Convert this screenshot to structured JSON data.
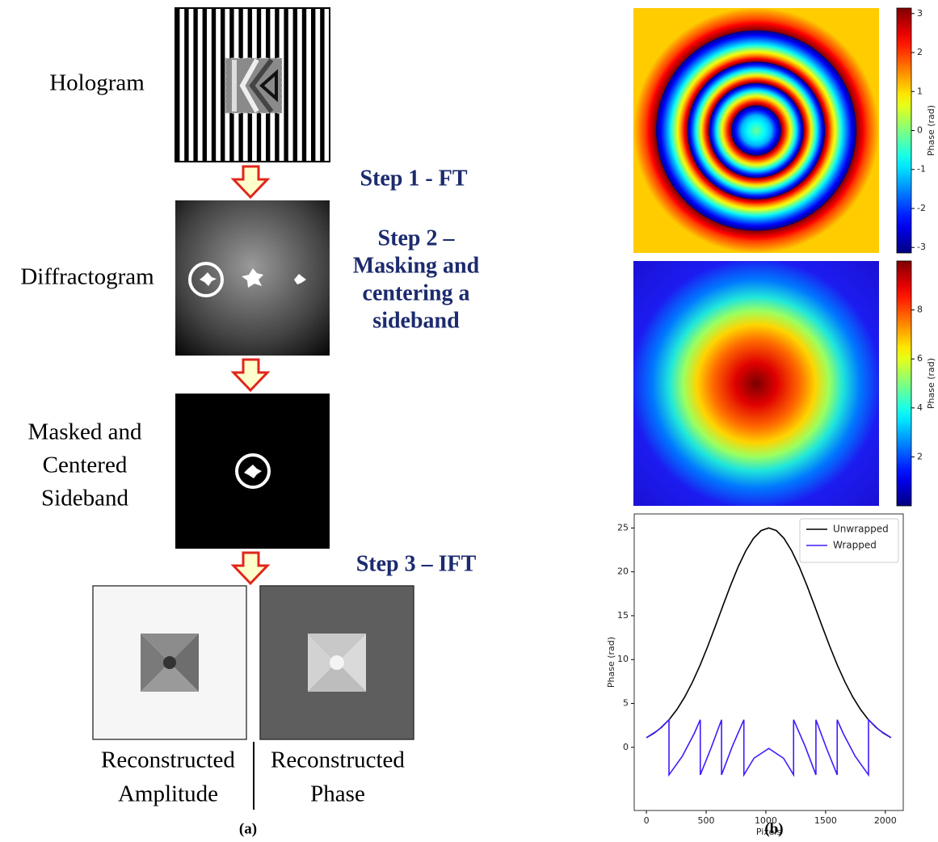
{
  "panel_a": {
    "label": "(a)",
    "hologram": "Hologram",
    "diffractogram": "Diffractogram",
    "sideband_label": [
      "Masked and",
      "Centered",
      "Sideband"
    ],
    "step1": "Step 1 - FT",
    "step2": [
      "Step 2 –",
      "Masking and",
      "centering a",
      "sideband"
    ],
    "step3": "Step 3 – IFT",
    "amplitude_label": [
      "Reconstructed",
      "Amplitude"
    ],
    "phase_label": [
      "Reconstructed",
      "Phase"
    ]
  },
  "panel_b": {
    "label": "(b)"
  },
  "chart_data": [
    {
      "type": "image",
      "colormap": "jet",
      "colorbar_label": "Phase (rad)",
      "clim": [
        -3.14,
        3.14
      ],
      "cticks": [
        -3,
        -2,
        -1,
        0,
        1,
        2,
        3
      ]
    },
    {
      "type": "image",
      "colormap": "jet",
      "colorbar_label": "Phase (rad)",
      "clim": [
        0,
        10
      ],
      "cticks": [
        2,
        4,
        6,
        8
      ]
    },
    {
      "type": "line",
      "xlabel": "Pixels",
      "ylabel": "Phase (rad)",
      "xlim": [
        -102,
        2150
      ],
      "ylim": [
        -7.2,
        26.6
      ],
      "xticks": [
        0,
        500,
        1000,
        1500,
        2000
      ],
      "yticks": [
        0,
        5,
        10,
        15,
        20,
        25
      ],
      "grid": false,
      "legend": "upper right",
      "series": [
        {
          "name": "Unwrapped",
          "color": "#000000",
          "x": [
            0,
            64,
            128,
            192,
            256,
            320,
            384,
            448,
            512,
            576,
            640,
            704,
            768,
            832,
            896,
            960,
            1024,
            1088,
            1152,
            1216,
            1280,
            1344,
            1408,
            1472,
            1536,
            1600,
            1664,
            1728,
            1792,
            1856,
            1920,
            1984,
            2048
          ],
          "values": [
            1.1,
            1.61,
            2.29,
            3.19,
            4.32,
            5.72,
            7.39,
            9.31,
            11.46,
            13.76,
            16.12,
            18.43,
            20.57,
            22.4,
            23.81,
            24.7,
            25.0,
            24.7,
            23.81,
            22.4,
            20.57,
            18.43,
            16.12,
            13.76,
            11.46,
            9.31,
            7.39,
            5.72,
            4.32,
            3.19,
            2.29,
            1.61,
            1.1
          ]
        },
        {
          "name": "Wrapped",
          "color": "#3d1cff",
          "x": [
            0,
            100,
            189,
            189,
            300,
            400,
            451,
            451,
            540,
            629,
            629,
            720,
            816,
            816,
            900,
            1024,
            1148,
            1232,
            1232,
            1328,
            1419,
            1419,
            1508,
            1597,
            1597,
            1648,
            1748,
            1859,
            1859,
            1948,
            2048
          ],
          "values": [
            1.1,
            1.97,
            3.14,
            -3.14,
            -1.03,
            1.56,
            3.14,
            -3.14,
            -0.12,
            3.14,
            -3.14,
            0.14,
            3.14,
            -3.14,
            -1.25,
            -0.13,
            -1.25,
            -3.14,
            3.14,
            0.14,
            -3.14,
            3.14,
            -0.12,
            -3.14,
            3.14,
            1.56,
            -1.03,
            -3.14,
            3.14,
            1.97,
            1.1
          ]
        }
      ]
    }
  ]
}
